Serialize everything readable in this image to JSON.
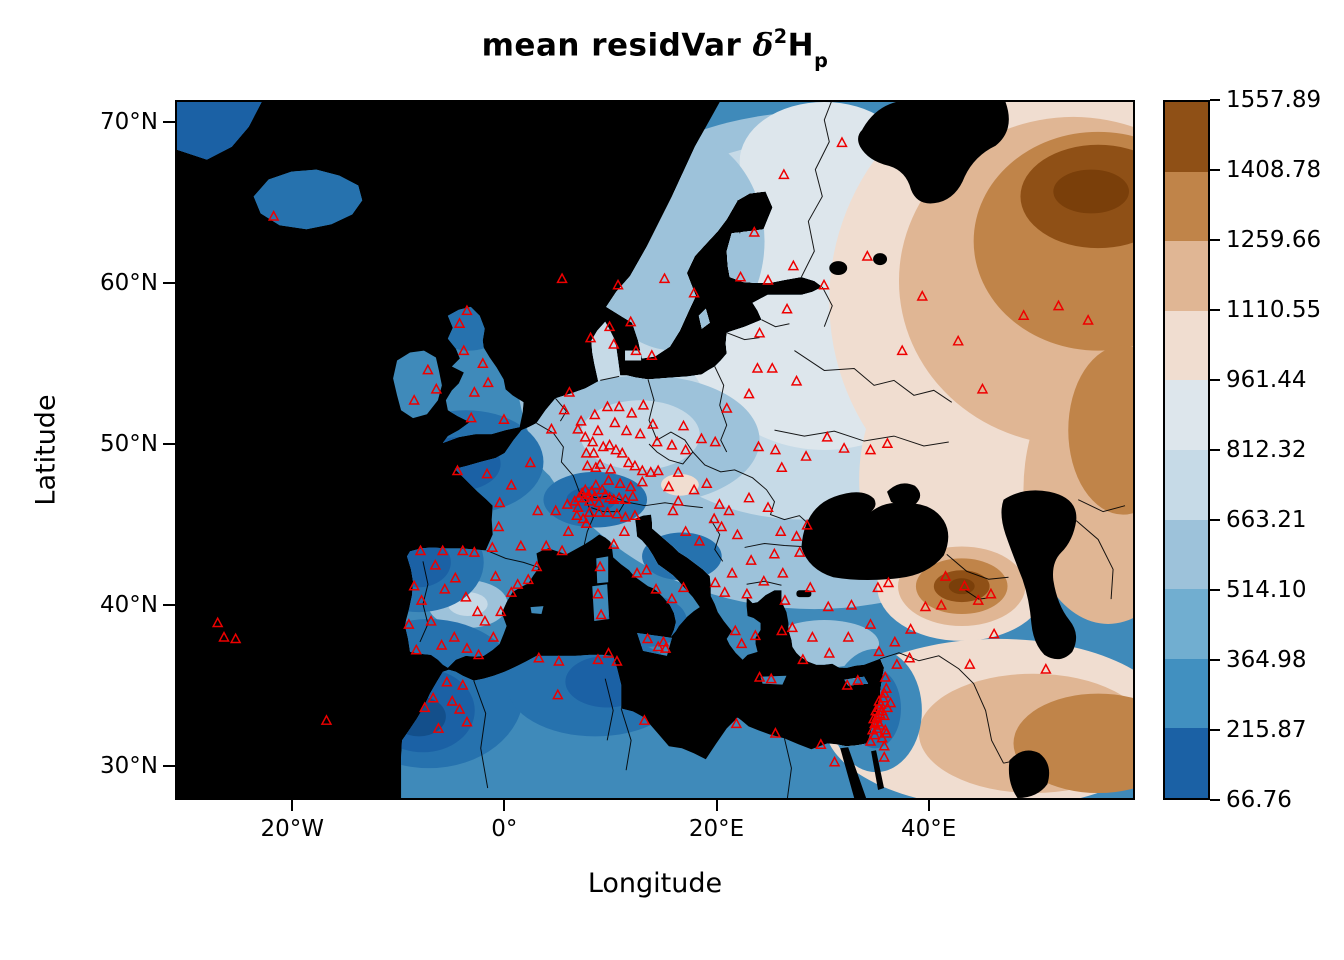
{
  "title": {
    "prefix": "mean residVar ",
    "delta": "δ",
    "exponent": "2",
    "element": "H",
    "subscript": "p"
  },
  "axes": {
    "x_label": "Longitude",
    "y_label": "Latitude",
    "x_ticks": [
      {
        "label": "20°W",
        "lon": -20
      },
      {
        "label": "0°",
        "lon": 0
      },
      {
        "label": "20°E",
        "lon": 20
      },
      {
        "label": "40°E",
        "lon": 40
      }
    ],
    "y_ticks": [
      {
        "label": "70°N",
        "lat": 70
      },
      {
        "label": "60°N",
        "lat": 60
      },
      {
        "label": "50°N",
        "lat": 50
      },
      {
        "label": "40°N",
        "lat": 40
      },
      {
        "label": "30°N",
        "lat": 30
      }
    ]
  },
  "colorbar": {
    "tick_labels": [
      "1557.89",
      "1408.78",
      "1259.66",
      "1110.55",
      "961.44",
      "812.32",
      "663.21",
      "514.10",
      "364.98",
      "215.87",
      "66.76"
    ],
    "colors_top_to_bottom": [
      "#8f5016",
      "#c08449",
      "#e0b694",
      "#f0ddd0",
      "#dde6ec",
      "#c6dae7",
      "#9dc2da",
      "#71aed0",
      "#4190c0",
      "#1b61a5"
    ]
  },
  "chart_data": {
    "type": "heatmap",
    "subtype": "filled-contour map of Europe with sampling sites",
    "title": "mean residVar δ²Hp",
    "xlabel": "Longitude",
    "ylabel": "Latitude",
    "lon_range": [
      -31.05,
      59.45
    ],
    "lat_range": [
      27.89,
      71.37
    ],
    "value_breaks": [
      66.76,
      215.87,
      364.98,
      514.1,
      663.21,
      812.32,
      961.44,
      1110.55,
      1259.66,
      1408.78,
      1557.89
    ],
    "palette_low_to_high": [
      "#1b61a5",
      "#4190c0",
      "#71aed0",
      "#9dc2da",
      "#c6dae7",
      "#dde6ec",
      "#f0ddd0",
      "#e0b694",
      "#c08449",
      "#8f5016"
    ],
    "legend_position": "right",
    "surface_description": "low values (blue) over western/central Europe and NW Africa; high values (brown) over NE Russia, the Caucasus hotspot and SE corner; seas masked black",
    "marker": {
      "shape": "open-triangle",
      "color": "#ee0000",
      "meaning": "sampling sites"
    },
    "sites_lon_lat": [
      [
        -27.2,
        38.8
      ],
      [
        -26.6,
        37.9
      ],
      [
        -25.5,
        37.8
      ],
      [
        -21.9,
        64.2
      ],
      [
        -16.9,
        32.7
      ],
      [
        -7.6,
        33.5
      ],
      [
        -6.8,
        34.1
      ],
      [
        -6.3,
        32.2
      ],
      [
        -5.5,
        35.1
      ],
      [
        -5.0,
        33.9
      ],
      [
        -4.3,
        33.4
      ],
      [
        -4.0,
        34.9
      ],
      [
        -3.6,
        32.6
      ],
      [
        -9.1,
        38.7
      ],
      [
        -8.6,
        41.1
      ],
      [
        -8.0,
        43.3
      ],
      [
        -7.9,
        40.2
      ],
      [
        -8.4,
        37.1
      ],
      [
        -7.0,
        38.9
      ],
      [
        -6.6,
        42.4
      ],
      [
        -6.0,
        37.4
      ],
      [
        -5.9,
        43.3
      ],
      [
        -5.7,
        40.9
      ],
      [
        -4.8,
        37.9
      ],
      [
        -4.7,
        41.6
      ],
      [
        -4.0,
        43.3
      ],
      [
        -3.7,
        40.4
      ],
      [
        -3.6,
        37.2
      ],
      [
        -2.9,
        43.2
      ],
      [
        -2.6,
        39.5
      ],
      [
        -2.5,
        36.8
      ],
      [
        -1.9,
        38.9
      ],
      [
        -1.1,
        37.9
      ],
      [
        -0.9,
        41.7
      ],
      [
        -0.4,
        39.5
      ],
      [
        0.6,
        40.7
      ],
      [
        1.2,
        41.2
      ],
      [
        2.2,
        41.5
      ],
      [
        3.0,
        42.3
      ],
      [
        -4.5,
        48.3
      ],
      [
        -1.7,
        48.1
      ],
      [
        -0.6,
        44.8
      ],
      [
        -1.2,
        43.5
      ],
      [
        -0.5,
        46.3
      ],
      [
        0.6,
        47.4
      ],
      [
        1.5,
        43.6
      ],
      [
        2.4,
        48.8
      ],
      [
        3.1,
        45.8
      ],
      [
        3.9,
        43.6
      ],
      [
        4.8,
        45.8
      ],
      [
        5.4,
        43.3
      ],
      [
        6.0,
        44.5
      ],
      [
        -8.6,
        52.7
      ],
      [
        -7.3,
        54.6
      ],
      [
        -6.5,
        53.4
      ],
      [
        -4.3,
        57.5
      ],
      [
        -3.9,
        55.8
      ],
      [
        -3.6,
        58.3
      ],
      [
        -3.2,
        51.6
      ],
      [
        -2.9,
        53.2
      ],
      [
        -2.1,
        55.0
      ],
      [
        -1.6,
        53.8
      ],
      [
        -0.1,
        51.5
      ],
      [
        4.4,
        50.9
      ],
      [
        5.6,
        52.1
      ],
      [
        6.1,
        53.2
      ],
      [
        5.9,
        46.2
      ],
      [
        6.6,
        46.4
      ],
      [
        6.8,
        45.5
      ],
      [
        6.9,
        46.0
      ],
      [
        7.0,
        46.6
      ],
      [
        7.3,
        46.9
      ],
      [
        7.4,
        45.3
      ],
      [
        7.5,
        46.6
      ],
      [
        7.6,
        47.1
      ],
      [
        7.7,
        45.0
      ],
      [
        7.9,
        46.8
      ],
      [
        8.0,
        45.7
      ],
      [
        8.0,
        46.4
      ],
      [
        8.2,
        47.0
      ],
      [
        8.5,
        46.7
      ],
      [
        8.6,
        47.4
      ],
      [
        8.9,
        45.7
      ],
      [
        8.9,
        46.3
      ],
      [
        9.2,
        47.1
      ],
      [
        9.5,
        46.8
      ],
      [
        9.7,
        45.7
      ],
      [
        9.9,
        46.6
      ],
      [
        10.3,
        46.5
      ],
      [
        10.6,
        45.6
      ],
      [
        10.8,
        46.6
      ],
      [
        11.4,
        45.4
      ],
      [
        11.4,
        46.5
      ],
      [
        12.1,
        46.7
      ],
      [
        12.3,
        45.5
      ],
      [
        6.9,
        50.9
      ],
      [
        7.2,
        51.4
      ],
      [
        7.6,
        50.4
      ],
      [
        7.7,
        49.4
      ],
      [
        7.8,
        48.6
      ],
      [
        8.3,
        50.1
      ],
      [
        8.4,
        49.4
      ],
      [
        8.5,
        51.8
      ],
      [
        8.6,
        48.5
      ],
      [
        8.8,
        50.8
      ],
      [
        9.0,
        48.7
      ],
      [
        9.3,
        49.8
      ],
      [
        9.7,
        52.3
      ],
      [
        9.8,
        47.7
      ],
      [
        9.9,
        49.9
      ],
      [
        10.0,
        48.4
      ],
      [
        10.4,
        51.3
      ],
      [
        10.5,
        49.6
      ],
      [
        10.8,
        52.3
      ],
      [
        10.9,
        47.5
      ],
      [
        11.1,
        49.4
      ],
      [
        11.5,
        50.8
      ],
      [
        11.7,
        48.8
      ],
      [
        11.9,
        47.3
      ],
      [
        12.0,
        51.9
      ],
      [
        12.3,
        48.6
      ],
      [
        12.8,
        50.6
      ],
      [
        13.0,
        47.6
      ],
      [
        13.0,
        48.3
      ],
      [
        13.1,
        52.4
      ],
      [
        13.8,
        48.2
      ],
      [
        14.0,
        51.2
      ],
      [
        14.4,
        50.1
      ],
      [
        14.5,
        48.3
      ],
      [
        15.5,
        47.3
      ],
      [
        15.8,
        49.9
      ],
      [
        16.4,
        48.2
      ],
      [
        17.1,
        49.6
      ],
      [
        5.4,
        60.3
      ],
      [
        8.1,
        56.6
      ],
      [
        9.9,
        57.3
      ],
      [
        10.3,
        56.2
      ],
      [
        10.7,
        59.9
      ],
      [
        11.9,
        57.6
      ],
      [
        12.4,
        55.8
      ],
      [
        13.9,
        55.5
      ],
      [
        15.1,
        60.3
      ],
      [
        17.9,
        59.4
      ],
      [
        22.3,
        60.4
      ],
      [
        24.9,
        60.2
      ],
      [
        27.3,
        61.1
      ],
      [
        23.6,
        63.2
      ],
      [
        26.4,
        66.8
      ],
      [
        31.9,
        68.8
      ],
      [
        16.9,
        51.1
      ],
      [
        18.6,
        50.3
      ],
      [
        19.9,
        50.1
      ],
      [
        21.0,
        52.2
      ],
      [
        23.1,
        53.1
      ],
      [
        23.9,
        54.7
      ],
      [
        25.3,
        54.7
      ],
      [
        24.1,
        56.9
      ],
      [
        26.7,
        58.4
      ],
      [
        27.6,
        53.9
      ],
      [
        24.0,
        49.8
      ],
      [
        25.6,
        49.6
      ],
      [
        26.2,
        48.5
      ],
      [
        28.5,
        49.2
      ],
      [
        30.5,
        50.4
      ],
      [
        32.1,
        49.7
      ],
      [
        34.6,
        49.6
      ],
      [
        36.2,
        50.0
      ],
      [
        30.2,
        59.9
      ],
      [
        34.3,
        61.7
      ],
      [
        37.6,
        55.8
      ],
      [
        39.5,
        59.2
      ],
      [
        42.9,
        56.4
      ],
      [
        45.2,
        53.4
      ],
      [
        49.1,
        58.0
      ],
      [
        52.4,
        58.6
      ],
      [
        55.2,
        57.7
      ],
      [
        17.9,
        47.1
      ],
      [
        19.1,
        47.5
      ],
      [
        20.3,
        46.2
      ],
      [
        21.2,
        45.8
      ],
      [
        23.1,
        46.6
      ],
      [
        24.9,
        46.0
      ],
      [
        26.1,
        44.5
      ],
      [
        27.6,
        44.2
      ],
      [
        28.6,
        44.9
      ],
      [
        23.3,
        42.7
      ],
      [
        25.5,
        43.1
      ],
      [
        27.9,
        43.2
      ],
      [
        22.0,
        44.3
      ],
      [
        20.5,
        44.8
      ],
      [
        19.8,
        45.3
      ],
      [
        18.4,
        43.9
      ],
      [
        17.1,
        44.5
      ],
      [
        15.9,
        45.8
      ],
      [
        16.4,
        46.4
      ],
      [
        21.5,
        41.9
      ],
      [
        19.9,
        41.3
      ],
      [
        20.8,
        40.7
      ],
      [
        22.9,
        40.6
      ],
      [
        24.5,
        41.4
      ],
      [
        26.3,
        41.9
      ],
      [
        21.8,
        38.3
      ],
      [
        23.7,
        38.0
      ],
      [
        22.4,
        37.5
      ],
      [
        24.1,
        35.4
      ],
      [
        25.2,
        35.3
      ],
      [
        26.2,
        38.3
      ],
      [
        28.2,
        36.5
      ],
      [
        8.8,
        40.6
      ],
      [
        9.0,
        42.3
      ],
      [
        9.1,
        39.3
      ],
      [
        10.3,
        43.7
      ],
      [
        11.3,
        44.5
      ],
      [
        12.5,
        41.9
      ],
      [
        13.4,
        42.1
      ],
      [
        14.3,
        40.9
      ],
      [
        15.8,
        40.3
      ],
      [
        16.9,
        41.0
      ],
      [
        13.5,
        37.8
      ],
      [
        14.5,
        37.3
      ],
      [
        15.0,
        37.6
      ],
      [
        15.2,
        37.2
      ],
      [
        3.2,
        36.6
      ],
      [
        5.0,
        34.3
      ],
      [
        5.1,
        36.4
      ],
      [
        8.8,
        36.5
      ],
      [
        9.8,
        36.9
      ],
      [
        10.6,
        36.4
      ],
      [
        13.2,
        32.7
      ],
      [
        21.9,
        32.5
      ],
      [
        25.6,
        31.9
      ],
      [
        29.9,
        31.2
      ],
      [
        31.2,
        30.1
      ],
      [
        26.5,
        40.2
      ],
      [
        27.2,
        38.5
      ],
      [
        28.9,
        41.0
      ],
      [
        29.1,
        37.9
      ],
      [
        30.6,
        39.8
      ],
      [
        30.7,
        36.9
      ],
      [
        32.5,
        37.9
      ],
      [
        32.8,
        39.9
      ],
      [
        34.6,
        38.7
      ],
      [
        35.3,
        41.0
      ],
      [
        35.4,
        37.0
      ],
      [
        36.3,
        41.3
      ],
      [
        36.9,
        37.6
      ],
      [
        38.4,
        38.4
      ],
      [
        39.8,
        39.8
      ],
      [
        41.3,
        39.9
      ],
      [
        32.4,
        34.9
      ],
      [
        33.4,
        35.2
      ],
      [
        34.6,
        31.4
      ],
      [
        34.8,
        32.1
      ],
      [
        34.9,
        32.8
      ],
      [
        35.0,
        31.8
      ],
      [
        35.0,
        32.5
      ],
      [
        35.1,
        33.3
      ],
      [
        35.2,
        32.2
      ],
      [
        35.2,
        32.9
      ],
      [
        35.3,
        32.6
      ],
      [
        35.4,
        33.5
      ],
      [
        35.4,
        33.9
      ],
      [
        35.5,
        32.4
      ],
      [
        35.5,
        33.1
      ],
      [
        35.6,
        33.7
      ],
      [
        35.7,
        31.6
      ],
      [
        35.7,
        33.3
      ],
      [
        35.8,
        34.1
      ],
      [
        35.9,
        33.0
      ],
      [
        35.9,
        34.4
      ],
      [
        36.0,
        32.1
      ],
      [
        36.1,
        34.7
      ],
      [
        36.2,
        33.5
      ],
      [
        36.5,
        33.8
      ],
      [
        35.9,
        31.1
      ],
      [
        36.0,
        35.4
      ],
      [
        37.1,
        36.2
      ],
      [
        38.3,
        36.6
      ],
      [
        36.1,
        31.9
      ],
      [
        35.9,
        30.4
      ],
      [
        41.7,
        41.7
      ],
      [
        43.5,
        41.1
      ],
      [
        44.8,
        40.2
      ],
      [
        46.3,
        38.1
      ],
      [
        44.0,
        36.2
      ],
      [
        51.2,
        35.9
      ],
      [
        46.0,
        40.6
      ]
    ]
  }
}
